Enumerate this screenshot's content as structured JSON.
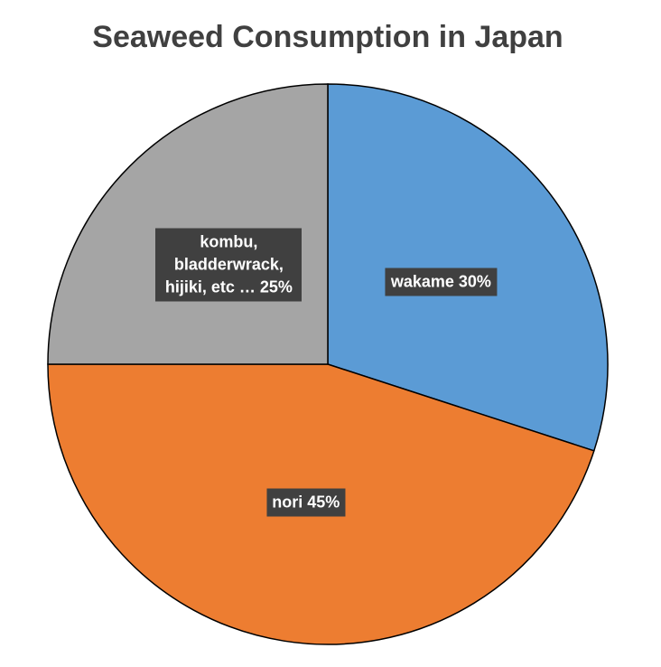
{
  "chart_data": {
    "type": "pie",
    "title": "Seaweed Consumption in Japan",
    "categories": [
      "wakame",
      "nori",
      "kombu, bladderwrack, hijiki, etc …"
    ],
    "values": [
      30,
      45,
      25
    ],
    "value_labels": [
      "30%",
      "45%",
      "25%"
    ],
    "colors": [
      "#5b9bd5",
      "#ed7d31",
      "#a5a5a5"
    ]
  }
}
